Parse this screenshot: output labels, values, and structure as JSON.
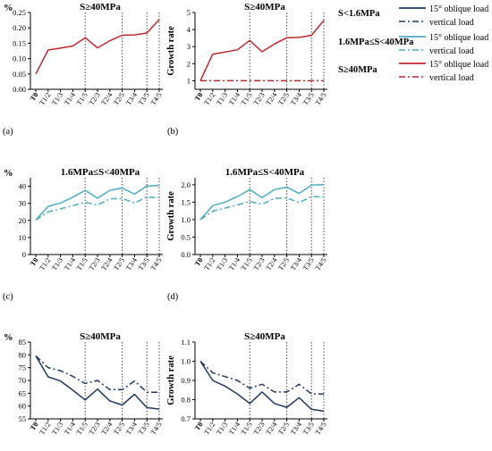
{
  "legend": {
    "groups": [
      {
        "label": "S<1.6MPa",
        "entries": [
          {
            "label": "15° oblique load",
            "color": "#1f3864",
            "dash": "solid"
          },
          {
            "label": "vertical load",
            "color": "#1f3864",
            "dash": "dashdot"
          }
        ]
      },
      {
        "label": "1.6MPa≤S<40MPa",
        "entries": [
          {
            "label": "15° oblique load",
            "color": "#4bacc6",
            "dash": "solid"
          },
          {
            "label": "vertical load",
            "color": "#4bacc6",
            "dash": "dashdot"
          }
        ]
      },
      {
        "label": "S≥40MPa",
        "entries": [
          {
            "label": "15° oblique load",
            "color": "#c0272d",
            "dash": "solid"
          },
          {
            "label": "vertical load",
            "color": "#c0272d",
            "dash": "dashdot"
          }
        ]
      }
    ]
  },
  "chart_data": [
    {
      "type": "line",
      "panel": "(a)",
      "title": "S≥40MPa",
      "ylabel": "%",
      "ylim": [
        0,
        0.25
      ],
      "yticks": [
        0.0,
        0.05,
        0.1,
        0.15,
        0.2,
        0.25
      ],
      "ytick_labels": [
        "0.00",
        "0.05",
        "0.10",
        "0.15",
        "0.20",
        "0.25"
      ],
      "categories": [
        "T0",
        "T1/2",
        "T1/3",
        "T1/4",
        "T1/5",
        "T2/3",
        "T2/4",
        "T2/5",
        "T3/4",
        "T3/5",
        "T4/5"
      ],
      "category_colors": [
        "#000000",
        "#1f4e79",
        "#1f4e79",
        "#1f4e79",
        "#1f4e79",
        "#c0392b",
        "#c0392b",
        "#c0392b",
        "#d4a017",
        "#d4a017",
        "#2e7d32"
      ],
      "vlines": [
        "T1/5",
        "T2/5",
        "T3/5",
        "T4/5"
      ],
      "series": [
        {
          "values": [
            0.05,
            0.128,
            0.134,
            0.141,
            0.168,
            0.135,
            0.158,
            0.176,
            0.177,
            0.183,
            0.227
          ],
          "color": "#c0272d",
          "dash": "solid"
        }
      ]
    },
    {
      "type": "line",
      "panel": "(b)",
      "title": "S≥40MPa",
      "ylabel": "Growth rate",
      "ylim": [
        0.5,
        5.0
      ],
      "yticks": [
        1,
        2,
        3,
        4,
        5
      ],
      "ytick_labels": [
        "1",
        "2",
        "3",
        "4",
        "5"
      ],
      "categories": [
        "T0",
        "T1/2",
        "T1/3",
        "T1/4",
        "T1/5",
        "T2/3",
        "T2/4",
        "T2/5",
        "T3/4",
        "T3/5",
        "T4/5"
      ],
      "category_colors": [
        "#000000",
        "#1f4e79",
        "#1f4e79",
        "#1f4e79",
        "#1f4e79",
        "#c0392b",
        "#c0392b",
        "#c0392b",
        "#d4a017",
        "#d4a017",
        "#2e7d32"
      ],
      "vlines": [
        "T1/5",
        "T2/5",
        "T3/5",
        "T4/5"
      ],
      "series": [
        {
          "values": [
            1.0,
            2.56,
            2.68,
            2.82,
            3.36,
            2.7,
            3.16,
            3.52,
            3.54,
            3.66,
            4.54
          ],
          "color": "#c0272d",
          "dash": "solid"
        },
        {
          "values": [
            1.0,
            1.0,
            1.0,
            1.0,
            1.0,
            1.0,
            1.0,
            1.0,
            1.0,
            1.0,
            1.0
          ],
          "color": "#c0272d",
          "dash": "dashdot"
        }
      ]
    },
    {
      "type": "line",
      "panel": "(c)",
      "title": "1.6MPa≤S<40MPa",
      "ylabel": "%",
      "ylim": [
        0,
        45
      ],
      "yticks": [
        0,
        10,
        20,
        30,
        40
      ],
      "ytick_labels": [
        "0",
        "10",
        "20",
        "30",
        "40"
      ],
      "categories": [
        "T0",
        "T1/2",
        "T1/3",
        "T1/4",
        "T1/5",
        "T2/3",
        "T2/4",
        "T2/5",
        "T3/4",
        "T3/5",
        "T4/5"
      ],
      "category_colors": [
        "#000000",
        "#1f4e79",
        "#1f4e79",
        "#1f4e79",
        "#1f4e79",
        "#c0392b",
        "#c0392b",
        "#c0392b",
        "#d4a017",
        "#d4a017",
        "#2e7d32"
      ],
      "vlines": [
        "T1/5",
        "T2/5",
        "T3/5",
        "T4/5"
      ],
      "series": [
        {
          "values": [
            20.2,
            28.2,
            30.2,
            33.6,
            37.6,
            33.0,
            37.6,
            39.0,
            35.4,
            40.2,
            40.4
          ],
          "color": "#4bacc6",
          "dash": "solid"
        },
        {
          "values": [
            20.2,
            25.0,
            26.8,
            28.6,
            30.6,
            29.0,
            32.6,
            32.8,
            30.2,
            33.6,
            33.4
          ],
          "color": "#4bacc6",
          "dash": "dashdot"
        }
      ]
    },
    {
      "type": "line",
      "panel": "(d)",
      "title": "1.6MPa≤S<40MPa",
      "ylabel": "Growth rate",
      "ylim": [
        0,
        2.2
      ],
      "yticks": [
        0.0,
        0.5,
        1.0,
        1.5,
        2.0
      ],
      "ytick_labels": [
        "0.0",
        "0.5",
        "1.0",
        "1.5",
        "2.0"
      ],
      "categories": [
        "T0",
        "T1/2",
        "T1/3",
        "T1/4",
        "T1/5",
        "T2/3",
        "T2/4",
        "T2/5",
        "T3/4",
        "T3/5",
        "T4/5"
      ],
      "category_colors": [
        "#000000",
        "#1f4e79",
        "#1f4e79",
        "#1f4e79",
        "#1f4e79",
        "#c0392b",
        "#c0392b",
        "#c0392b",
        "#d4a017",
        "#d4a017",
        "#2e7d32"
      ],
      "vlines": [
        "T1/5",
        "T2/5",
        "T3/5",
        "T4/5"
      ],
      "series": [
        {
          "values": [
            1.0,
            1.4,
            1.5,
            1.66,
            1.86,
            1.63,
            1.86,
            1.93,
            1.75,
            1.99,
            2.0
          ],
          "color": "#4bacc6",
          "dash": "solid"
        },
        {
          "values": [
            1.0,
            1.24,
            1.33,
            1.42,
            1.52,
            1.44,
            1.61,
            1.62,
            1.49,
            1.66,
            1.65
          ],
          "color": "#4bacc6",
          "dash": "dashdot"
        }
      ]
    },
    {
      "type": "line",
      "panel": "(e)",
      "title": "S≥40MPa",
      "ylabel": "%",
      "ylim": [
        55,
        85
      ],
      "yticks": [
        55,
        60,
        65,
        70,
        75,
        80,
        85
      ],
      "ytick_labels": [
        "55",
        "60",
        "65",
        "70",
        "75",
        "80",
        "85"
      ],
      "categories": [
        "T0",
        "T1/2",
        "T1/3",
        "T1/4",
        "T1/5",
        "T2/3",
        "T2/4",
        "T2/5",
        "T3/4",
        "T3/5",
        "T4/5"
      ],
      "category_colors": [
        "#000000",
        "#1f4e79",
        "#1f4e79",
        "#1f4e79",
        "#1f4e79",
        "#c0392b",
        "#c0392b",
        "#c0392b",
        "#d4a017",
        "#d4a017",
        "#2e7d32"
      ],
      "vlines": [
        "T1/5",
        "T2/5",
        "T3/5",
        "T4/5"
      ],
      "series": [
        {
          "values": [
            79.6,
            71.4,
            69.8,
            66.2,
            62.4,
            66.6,
            62.0,
            60.4,
            64.6,
            59.4,
            58.8
          ],
          "color": "#1f3864",
          "dash": "solid"
        },
        {
          "values": [
            79.6,
            75.0,
            73.8,
            71.6,
            68.8,
            70.0,
            66.4,
            66.4,
            69.8,
            65.4,
            65.4
          ],
          "color": "#1f3864",
          "dash": "dashdot"
        }
      ]
    },
    {
      "type": "line",
      "panel": "(f)",
      "title": "S≥40MPa",
      "ylabel": "Growth rate",
      "ylim": [
        0.7,
        1.1
      ],
      "yticks": [
        0.7,
        0.8,
        0.9,
        1.0,
        1.1
      ],
      "ytick_labels": [
        "0.7",
        "0.8",
        "0.9",
        "1.0",
        "1.1"
      ],
      "categories": [
        "T0",
        "T1/2",
        "T1/3",
        "T1/4",
        "T1/5",
        "T2/3",
        "T2/4",
        "T2/5",
        "T3/4",
        "T3/5",
        "T4/5"
      ],
      "category_colors": [
        "#000000",
        "#1f4e79",
        "#1f4e79",
        "#1f4e79",
        "#1f4e79",
        "#c0392b",
        "#c0392b",
        "#c0392b",
        "#d4a017",
        "#d4a017",
        "#2e7d32"
      ],
      "vlines": [
        "T1/5",
        "T2/5",
        "T3/5",
        "T4/5"
      ],
      "series": [
        {
          "values": [
            1.0,
            0.9,
            0.87,
            0.83,
            0.78,
            0.84,
            0.78,
            0.76,
            0.81,
            0.75,
            0.74
          ],
          "color": "#1f3864",
          "dash": "solid"
        },
        {
          "values": [
            1.0,
            0.94,
            0.92,
            0.9,
            0.86,
            0.88,
            0.84,
            0.84,
            0.88,
            0.83,
            0.83
          ],
          "color": "#1f3864",
          "dash": "dashdot"
        }
      ]
    }
  ]
}
